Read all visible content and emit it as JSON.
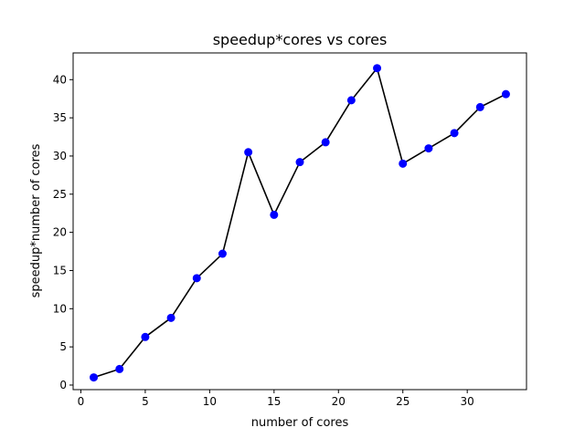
{
  "chart_data": {
    "type": "line",
    "title": "speedup*cores vs cores",
    "xlabel": "number of cores",
    "ylabel": "speedup*number of cores",
    "xlim": [
      -0.6,
      34.6
    ],
    "ylim": [
      -0.6,
      43.5
    ],
    "xticks": [
      0,
      5,
      10,
      15,
      20,
      25,
      30
    ],
    "yticks": [
      0,
      5,
      10,
      15,
      20,
      25,
      30,
      35,
      40
    ],
    "grid": false,
    "series": [
      {
        "x": [
          1,
          3,
          5,
          7,
          9,
          11,
          13,
          15,
          17,
          19,
          21,
          23,
          25,
          27,
          29,
          31,
          33
        ],
        "y": [
          1.0,
          2.1,
          6.3,
          8.8,
          14.0,
          17.2,
          30.5,
          22.3,
          29.2,
          31.8,
          37.3,
          41.5,
          29.0,
          31.0,
          33.0,
          36.4,
          38.1
        ],
        "line_color": "#000000",
        "marker_color": "#0000ff"
      }
    ]
  }
}
